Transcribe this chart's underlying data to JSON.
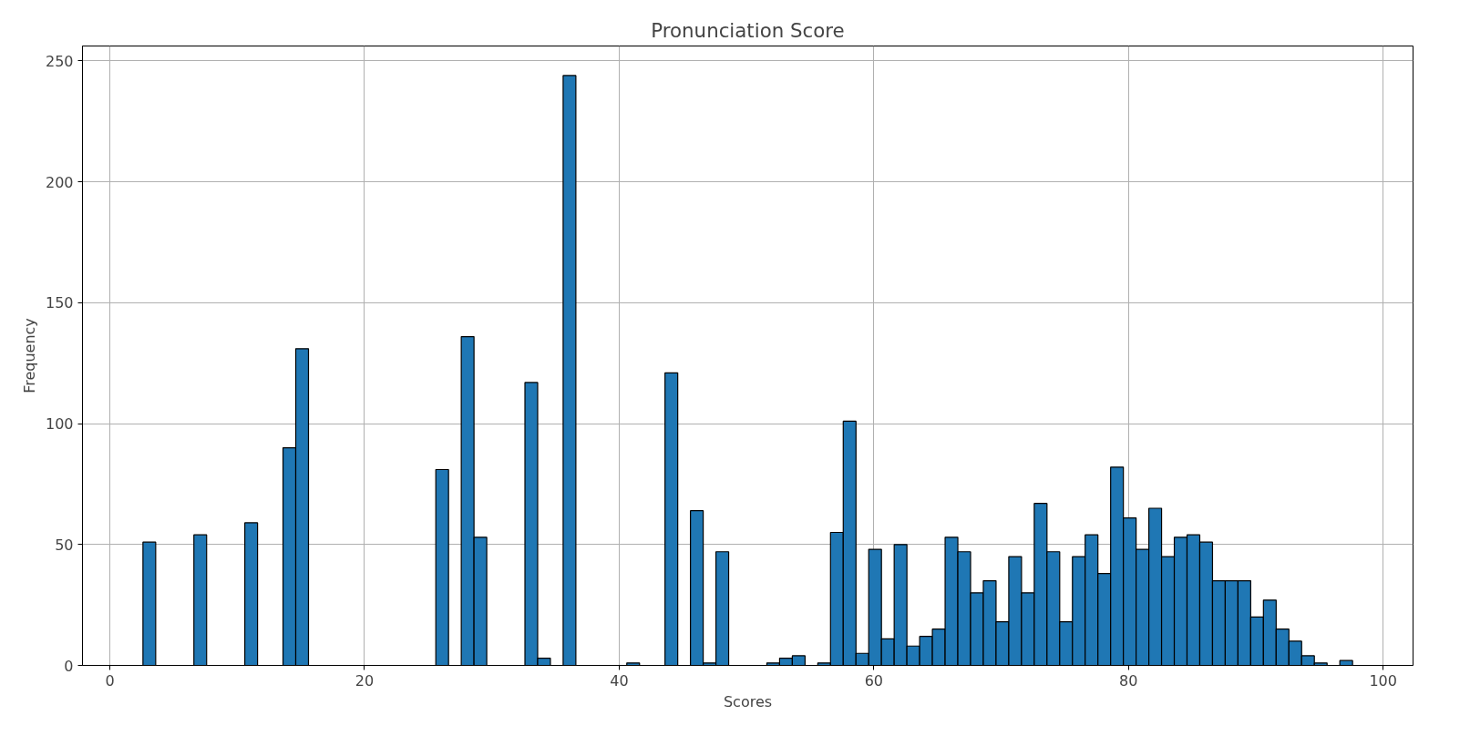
{
  "chart_data": {
    "type": "histogram",
    "title": "Pronunciation Score",
    "xlabel": "Scores",
    "ylabel": "Frequency",
    "bins": [
      2.6,
      3.6,
      4.6,
      5.6,
      6.6,
      7.6,
      8.6,
      9.6,
      10.6,
      11.6,
      12.6,
      13.6,
      14.6,
      15.6,
      16.6,
      17.6,
      18.6,
      19.6,
      20.6,
      21.6,
      22.6,
      23.6,
      24.6,
      25.6,
      26.6,
      27.6,
      28.6,
      29.6,
      30.6,
      31.6,
      32.6,
      33.6,
      34.6,
      35.6,
      36.6,
      37.6,
      38.6,
      39.6,
      40.6,
      41.6,
      42.6,
      43.6,
      44.6,
      45.6,
      46.6,
      47.6,
      48.6,
      49.6,
      50.6,
      51.6,
      52.6,
      53.6,
      54.6,
      55.6,
      56.6,
      57.6,
      58.6,
      59.6,
      60.6,
      61.6,
      62.6,
      63.6,
      64.6,
      65.6,
      66.6,
      67.6,
      68.6,
      69.6,
      70.6,
      71.6,
      72.6,
      73.6,
      74.6,
      75.6,
      76.6,
      77.6,
      78.6,
      79.6,
      80.6,
      81.6,
      82.6,
      83.6,
      84.6,
      85.6,
      86.6,
      87.6,
      88.6,
      89.6,
      90.6,
      91.6,
      92.6,
      93.6,
      94.6,
      95.6,
      96.6,
      97.6
    ],
    "values": [
      51,
      0,
      0,
      0,
      54,
      0,
      0,
      0,
      59,
      0,
      0,
      90,
      131,
      0,
      0,
      0,
      0,
      0,
      0,
      0,
      0,
      0,
      0,
      81,
      0,
      136,
      53,
      0,
      0,
      0,
      117,
      3,
      0,
      244,
      0,
      0,
      0,
      0,
      1,
      0,
      0,
      121,
      0,
      64,
      1,
      47,
      0,
      0,
      0,
      1,
      3,
      4,
      0,
      1,
      55,
      101,
      5,
      48,
      11,
      50,
      8,
      12,
      15,
      53,
      47,
      30,
      35,
      18,
      45,
      30,
      67,
      47,
      18,
      45,
      54,
      38,
      82,
      61,
      48,
      65,
      45,
      53,
      54,
      51,
      35,
      35,
      35,
      20,
      27,
      15,
      10,
      4,
      1,
      0,
      2
    ],
    "color": "#1f77b4",
    "xlim": [
      -2.15,
      102.35
    ],
    "ylim": [
      0,
      256.2
    ],
    "xticks": [
      0,
      20,
      40,
      60,
      80,
      100
    ],
    "yticks": [
      0,
      50,
      100,
      150,
      200,
      250
    ],
    "grid": true
  }
}
